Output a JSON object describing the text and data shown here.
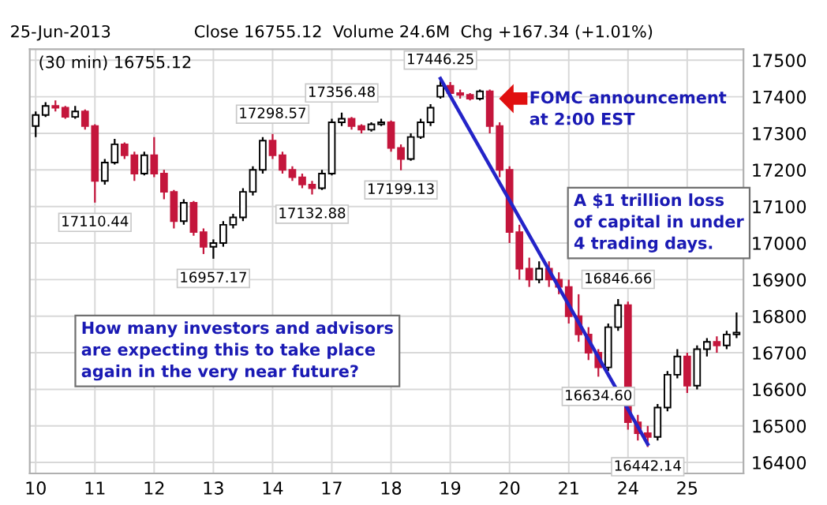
{
  "chart_data": {
    "type": "candlestick",
    "categories": [
      "10",
      null,
      null,
      null,
      null,
      null,
      "11",
      null,
      null,
      null,
      null,
      null,
      "12",
      null,
      null,
      null,
      null,
      null,
      "13",
      null,
      null,
      null,
      null,
      null,
      "14",
      null,
      null,
      null,
      null,
      null,
      "17",
      null,
      null,
      null,
      null,
      null,
      "18",
      null,
      null,
      null,
      null,
      null,
      "19",
      null,
      null,
      null,
      null,
      null,
      "20",
      null,
      null,
      null,
      null,
      null,
      "21",
      null,
      null,
      null,
      null,
      null,
      "24",
      null,
      null,
      null,
      null,
      null,
      "25",
      null,
      null,
      null,
      null,
      null
    ],
    "ohlc": [
      [
        17320,
        17360,
        17290,
        17350
      ],
      [
        17350,
        17385,
        17345,
        17375
      ],
      [
        17375,
        17390,
        17360,
        17370
      ],
      [
        17370,
        17375,
        17340,
        17345
      ],
      [
        17345,
        17375,
        17340,
        17360
      ],
      [
        17360,
        17365,
        17310,
        17320
      ],
      [
        17320,
        17325,
        17110.44,
        17170
      ],
      [
        17170,
        17230,
        17160,
        17220
      ],
      [
        17220,
        17285,
        17215,
        17270
      ],
      [
        17270,
        17275,
        17230,
        17240
      ],
      [
        17240,
        17250,
        17170,
        17190
      ],
      [
        17190,
        17250,
        17185,
        17240
      ],
      [
        17240,
        17290,
        17180,
        17190
      ],
      [
        17190,
        17200,
        17120,
        17140
      ],
      [
        17140,
        17145,
        17040,
        17060
      ],
      [
        17060,
        17120,
        17050,
        17110
      ],
      [
        17110,
        17115,
        17020,
        17030
      ],
      [
        17030,
        17040,
        16970,
        16990
      ],
      [
        16990,
        17010,
        16957.17,
        17000
      ],
      [
        17000,
        17060,
        16990,
        17050
      ],
      [
        17050,
        17080,
        17040,
        17070
      ],
      [
        17070,
        17150,
        17060,
        17140
      ],
      [
        17140,
        17210,
        17130,
        17200
      ],
      [
        17200,
        17290,
        17190,
        17280
      ],
      [
        17280,
        17298.57,
        17230,
        17240
      ],
      [
        17240,
        17250,
        17190,
        17200
      ],
      [
        17200,
        17210,
        17170,
        17180
      ],
      [
        17180,
        17190,
        17150,
        17160
      ],
      [
        17160,
        17170,
        17132.88,
        17150
      ],
      [
        17150,
        17200,
        17145,
        17190
      ],
      [
        17190,
        17340,
        17185,
        17330
      ],
      [
        17330,
        17356.48,
        17320,
        17340
      ],
      [
        17340,
        17345,
        17310,
        17320
      ],
      [
        17320,
        17325,
        17300,
        17310
      ],
      [
        17310,
        17330,
        17305,
        17325
      ],
      [
        17325,
        17340,
        17320,
        17330
      ],
      [
        17330,
        17335,
        17250,
        17260
      ],
      [
        17260,
        17270,
        17199.13,
        17230
      ],
      [
        17230,
        17300,
        17225,
        17290
      ],
      [
        17290,
        17340,
        17285,
        17330
      ],
      [
        17330,
        17380,
        17320,
        17370
      ],
      [
        17400,
        17446.25,
        17395,
        17430
      ],
      [
        17430,
        17440,
        17400,
        17410
      ],
      [
        17410,
        17420,
        17395,
        17405
      ],
      [
        17405,
        17410,
        17390,
        17395
      ],
      [
        17395,
        17420,
        17390,
        17415
      ],
      [
        17415,
        17420,
        17300,
        17320
      ],
      [
        17320,
        17330,
        17180,
        17200
      ],
      [
        17200,
        17210,
        17000,
        17030
      ],
      [
        17030,
        17050,
        16900,
        16930
      ],
      [
        16930,
        16960,
        16880,
        16900
      ],
      [
        16900,
        16950,
        16890,
        16930
      ],
      [
        16930,
        16950,
        16880,
        16900
      ],
      [
        16900,
        16920,
        16860,
        16880
      ],
      [
        16880,
        16900,
        16780,
        16800
      ],
      [
        16800,
        16860,
        16730,
        16750
      ],
      [
        16750,
        16770,
        16680,
        16700
      ],
      [
        16700,
        16710,
        16634.6,
        16660
      ],
      [
        16660,
        16780,
        16650,
        16770
      ],
      [
        16770,
        16846.66,
        16760,
        16830
      ],
      [
        16830,
        16840,
        16490,
        16510
      ],
      [
        16510,
        16530,
        16460,
        16480
      ],
      [
        16480,
        16500,
        16442.14,
        16470
      ],
      [
        16470,
        16560,
        16460,
        16550
      ],
      [
        16550,
        16650,
        16540,
        16640
      ],
      [
        16640,
        16710,
        16630,
        16690
      ],
      [
        16690,
        16700,
        16590,
        16610
      ],
      [
        16610,
        16720,
        16600,
        16710
      ],
      [
        16710,
        16740,
        16690,
        16730
      ],
      [
        16730,
        16745,
        16700,
        16720
      ],
      [
        16720,
        16760,
        16710,
        16750
      ],
      [
        16750,
        16810,
        16740,
        16755.12
      ]
    ],
    "colors": [
      "#000000",
      "#000000",
      "#c4163c",
      "#c4163c",
      "#000000",
      "#c4163c",
      "#c4163c",
      "#000000",
      "#000000",
      "#c4163c",
      "#c4163c",
      "#000000",
      "#c4163c",
      "#c4163c",
      "#c4163c",
      "#000000",
      "#c4163c",
      "#c4163c",
      "#000000",
      "#000000",
      "#000000",
      "#000000",
      "#000000",
      "#000000",
      "#c4163c",
      "#c4163c",
      "#c4163c",
      "#c4163c",
      "#c4163c",
      "#000000",
      "#000000",
      "#000000",
      "#c4163c",
      "#c4163c",
      "#000000",
      "#000000",
      "#c4163c",
      "#c4163c",
      "#000000",
      "#000000",
      "#000000",
      "#000000",
      "#c4163c",
      "#c4163c",
      "#c4163c",
      "#000000",
      "#c4163c",
      "#c4163c",
      "#c4163c",
      "#c4163c",
      "#c4163c",
      "#000000",
      "#c4163c",
      "#c4163c",
      "#c4163c",
      "#c4163c",
      "#c4163c",
      "#c4163c",
      "#000000",
      "#000000",
      "#c4163c",
      "#c4163c",
      "#c4163c",
      "#000000",
      "#000000",
      "#000000",
      "#c4163c",
      "#000000",
      "#000000",
      "#c4163c",
      "#000000",
      "#000000"
    ],
    "series": [
      {
        "type": "line",
        "color": "#2424c8",
        "values": [
          null,
          null,
          null,
          null,
          null,
          null,
          null,
          null,
          null,
          null,
          null,
          null,
          null,
          null,
          null,
          null,
          null,
          null,
          null,
          null,
          null,
          null,
          null,
          null,
          null,
          null,
          null,
          null,
          null,
          null,
          null,
          null,
          null,
          null,
          null,
          null,
          null,
          null,
          null,
          null,
          null,
          17450,
          null,
          null,
          null,
          null,
          null,
          null,
          null,
          null,
          null,
          null,
          null,
          null,
          null,
          null,
          null,
          null,
          null,
          null,
          null,
          null,
          16450,
          null,
          null,
          null,
          null,
          null,
          null,
          null,
          null,
          null
        ]
      }
    ],
    "ylim": [
      16370,
      17530
    ],
    "yticks": [
      16400,
      16500,
      16600,
      16700,
      16800,
      16900,
      17000,
      17100,
      17200,
      17300,
      17400,
      17500
    ],
    "grid": true,
    "annotations": [
      "25-Jun-2013",
      "Close 16755.12  Volume 24.6M  Chg +167.34 (+1.01%)",
      "(30 min) 16755.12",
      "FOMC announcement\nat 2:00 EST",
      "A $1 trillion loss\nof capital in under\n4 trading days.",
      "How many investors and advisors\nare expecting this to take place\nagain in the very near future?",
      {
        "text": "17110.44",
        "y": 17110.44
      },
      {
        "text": "16957.17",
        "y": 16957.17
      },
      {
        "text": "17298.57",
        "y": 17298.57
      },
      {
        "text": "17132.88",
        "y": 17132.88
      },
      {
        "text": "17356.48",
        "y": 17356.48
      },
      {
        "text": "17199.13",
        "y": 17199.13
      },
      {
        "text": "17446.25",
        "y": 17446.25
      },
      {
        "text": "16634.60",
        "y": 16634.6
      },
      {
        "text": "16846.66",
        "y": 16846.66
      },
      {
        "text": "16442.14",
        "y": 16442.14
      }
    ]
  }
}
